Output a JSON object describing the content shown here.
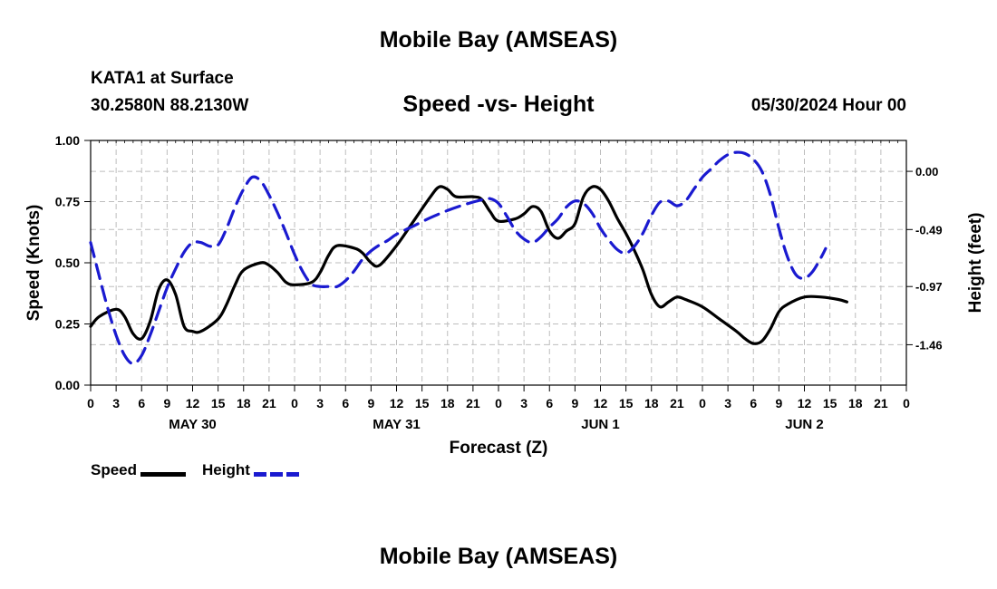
{
  "header": {
    "title": "Mobile Bay (AMSEAS)",
    "station": "KATA1 at Surface",
    "coords": "30.2580N  88.2130W",
    "subtitle": "Speed -vs- Height",
    "date": "05/30/2024 Hour 00"
  },
  "footer": {
    "title": "Mobile Bay (AMSEAS)"
  },
  "legend": {
    "speed_label": "Speed",
    "height_label": "Height"
  },
  "chart_data": {
    "type": "line",
    "xlabel": "Forecast (Z)",
    "ylabel_left": "Speed (Knots)",
    "ylabel_right": "Height (feet)",
    "x_range_hours": [
      0,
      96
    ],
    "x_tick_labels": [
      "0",
      "3",
      "6",
      "9",
      "12",
      "15",
      "18",
      "21",
      "0",
      "3",
      "6",
      "9",
      "12",
      "15",
      "18",
      "21",
      "0",
      "3",
      "6",
      "9",
      "12",
      "15",
      "18",
      "21",
      "0",
      "3",
      "6",
      "9",
      "12",
      "15",
      "18",
      "21",
      "0"
    ],
    "x_day_labels": [
      {
        "hour": 12,
        "label": "MAY 30"
      },
      {
        "hour": 36,
        "label": "MAY 31"
      },
      {
        "hour": 60,
        "label": "JUN 1"
      },
      {
        "hour": 84,
        "label": "JUN 2"
      }
    ],
    "ylim_left": [
      0,
      1
    ],
    "y_ticks_left": [
      0,
      0.25,
      0.5,
      0.75,
      1
    ],
    "y_tick_labels_left": [
      "0.00",
      "0.25",
      "0.50",
      "0.75",
      "1.00"
    ],
    "ylim_right": [
      -1.8,
      0.26
    ],
    "y_ticks_right": [
      0,
      -0.49,
      -0.97,
      -1.46
    ],
    "y_tick_labels_right": [
      "0.00",
      "-0.49",
      "-0.97",
      "-1.46"
    ],
    "grid": true,
    "series": [
      {
        "name": "Speed",
        "axis": "left",
        "color": "#000000",
        "style": "solid",
        "points": [
          [
            0,
            0.24
          ],
          [
            1,
            0.28
          ],
          [
            3,
            0.31
          ],
          [
            4,
            0.28
          ],
          [
            5,
            0.21
          ],
          [
            6,
            0.19
          ],
          [
            7,
            0.26
          ],
          [
            8,
            0.39
          ],
          [
            9,
            0.43
          ],
          [
            10,
            0.37
          ],
          [
            11,
            0.24
          ],
          [
            12,
            0.22
          ],
          [
            13,
            0.22
          ],
          [
            15,
            0.27
          ],
          [
            16,
            0.33
          ],
          [
            17,
            0.41
          ],
          [
            18,
            0.47
          ],
          [
            20,
            0.5
          ],
          [
            21,
            0.49
          ],
          [
            22,
            0.46
          ],
          [
            23,
            0.42
          ],
          [
            24,
            0.41
          ],
          [
            26,
            0.42
          ],
          [
            27,
            0.46
          ],
          [
            28,
            0.53
          ],
          [
            29,
            0.57
          ],
          [
            31,
            0.56
          ],
          [
            32,
            0.54
          ],
          [
            33,
            0.5
          ],
          [
            34,
            0.49
          ],
          [
            36,
            0.57
          ],
          [
            38,
            0.67
          ],
          [
            40,
            0.77
          ],
          [
            41,
            0.81
          ],
          [
            42,
            0.8
          ],
          [
            43,
            0.77
          ],
          [
            45,
            0.77
          ],
          [
            46,
            0.76
          ],
          [
            47,
            0.71
          ],
          [
            48,
            0.67
          ],
          [
            50,
            0.68
          ],
          [
            51,
            0.7
          ],
          [
            52,
            0.73
          ],
          [
            53,
            0.71
          ],
          [
            54,
            0.63
          ],
          [
            55,
            0.6
          ],
          [
            56,
            0.63
          ],
          [
            57,
            0.66
          ],
          [
            58,
            0.77
          ],
          [
            59,
            0.81
          ],
          [
            60,
            0.8
          ],
          [
            61,
            0.75
          ],
          [
            62,
            0.68
          ],
          [
            63,
            0.62
          ],
          [
            64,
            0.55
          ],
          [
            65,
            0.47
          ],
          [
            66,
            0.37
          ],
          [
            67,
            0.32
          ],
          [
            68,
            0.34
          ],
          [
            69,
            0.36
          ],
          [
            70,
            0.35
          ],
          [
            72,
            0.32
          ],
          [
            74,
            0.27
          ],
          [
            76,
            0.22
          ],
          [
            77,
            0.19
          ],
          [
            78,
            0.17
          ],
          [
            79,
            0.18
          ],
          [
            80,
            0.23
          ],
          [
            81,
            0.3
          ],
          [
            82,
            0.33
          ],
          [
            84,
            0.36
          ],
          [
            86,
            0.36
          ],
          [
            88,
            0.35
          ],
          [
            89,
            0.34
          ]
        ]
      },
      {
        "name": "Height",
        "axis": "right",
        "color": "#1a1ad0",
        "style": "dashed",
        "points": [
          [
            0,
            -0.6
          ],
          [
            1,
            -0.88
          ],
          [
            2,
            -1.15
          ],
          [
            3,
            -1.38
          ],
          [
            4,
            -1.55
          ],
          [
            5,
            -1.62
          ],
          [
            6,
            -1.55
          ],
          [
            7,
            -1.38
          ],
          [
            8,
            -1.18
          ],
          [
            9,
            -0.98
          ],
          [
            10,
            -0.82
          ],
          [
            11,
            -0.68
          ],
          [
            12,
            -0.6
          ],
          [
            13,
            -0.6
          ],
          [
            14,
            -0.63
          ],
          [
            15,
            -0.62
          ],
          [
            16,
            -0.48
          ],
          [
            17,
            -0.3
          ],
          [
            18,
            -0.15
          ],
          [
            19,
            -0.05
          ],
          [
            20,
            -0.08
          ],
          [
            21,
            -0.2
          ],
          [
            22,
            -0.35
          ],
          [
            23,
            -0.52
          ],
          [
            24,
            -0.7
          ],
          [
            25,
            -0.85
          ],
          [
            26,
            -0.95
          ],
          [
            27,
            -0.97
          ],
          [
            28,
            -0.97
          ],
          [
            29,
            -0.97
          ],
          [
            30,
            -0.92
          ],
          [
            31,
            -0.84
          ],
          [
            32,
            -0.74
          ],
          [
            33,
            -0.67
          ],
          [
            34,
            -0.62
          ],
          [
            35,
            -0.58
          ],
          [
            36,
            -0.53
          ],
          [
            38,
            -0.46
          ],
          [
            40,
            -0.39
          ],
          [
            42,
            -0.33
          ],
          [
            44,
            -0.28
          ],
          [
            46,
            -0.24
          ],
          [
            47,
            -0.23
          ],
          [
            48,
            -0.27
          ],
          [
            49,
            -0.38
          ],
          [
            50,
            -0.5
          ],
          [
            51,
            -0.57
          ],
          [
            52,
            -0.6
          ],
          [
            53,
            -0.55
          ],
          [
            54,
            -0.47
          ],
          [
            55,
            -0.4
          ],
          [
            56,
            -0.3
          ],
          [
            57,
            -0.25
          ],
          [
            58,
            -0.27
          ],
          [
            59,
            -0.35
          ],
          [
            60,
            -0.48
          ],
          [
            61,
            -0.58
          ],
          [
            62,
            -0.66
          ],
          [
            63,
            -0.69
          ],
          [
            64,
            -0.63
          ],
          [
            65,
            -0.52
          ],
          [
            66,
            -0.37
          ],
          [
            67,
            -0.26
          ],
          [
            68,
            -0.25
          ],
          [
            69,
            -0.29
          ],
          [
            70,
            -0.25
          ],
          [
            71,
            -0.15
          ],
          [
            72,
            -0.05
          ],
          [
            73,
            0.02
          ],
          [
            74,
            0.09
          ],
          [
            75,
            0.14
          ],
          [
            76,
            0.16
          ],
          [
            77,
            0.15
          ],
          [
            78,
            0.1
          ],
          [
            79,
            0.0
          ],
          [
            80,
            -0.2
          ],
          [
            81,
            -0.48
          ],
          [
            82,
            -0.72
          ],
          [
            83,
            -0.87
          ],
          [
            84,
            -0.9
          ],
          [
            85,
            -0.84
          ],
          [
            86,
            -0.72
          ],
          [
            86.5,
            -0.65
          ]
        ]
      }
    ]
  }
}
